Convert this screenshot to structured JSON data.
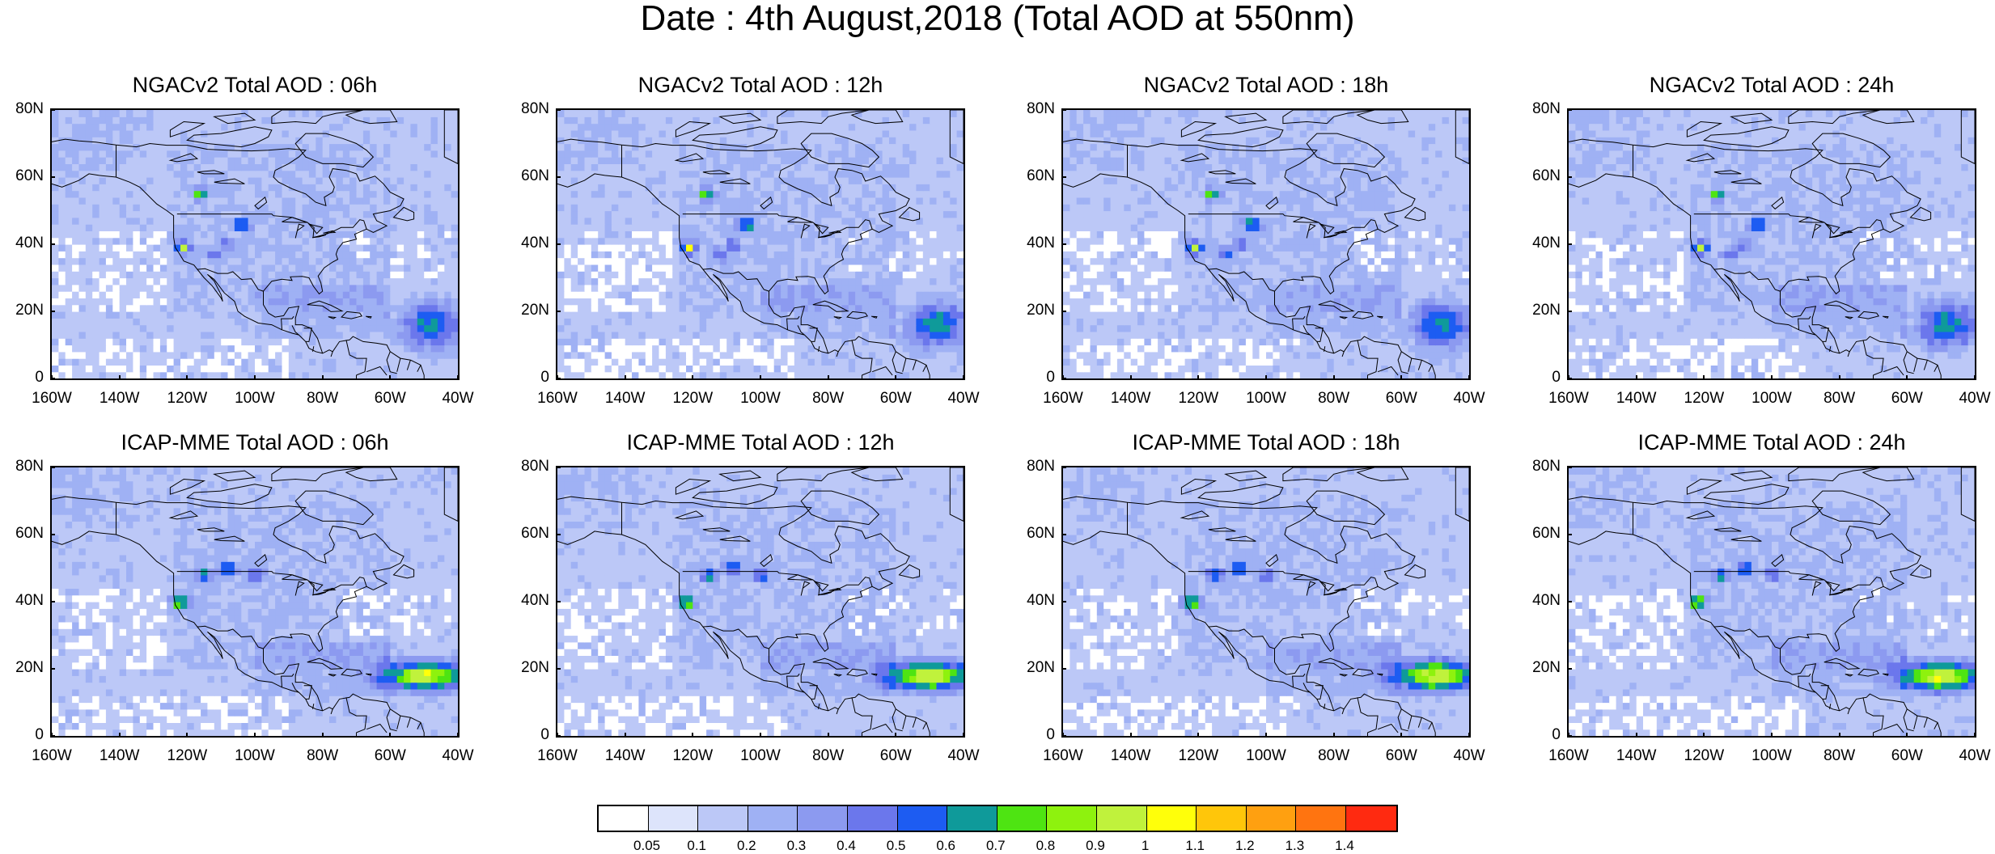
{
  "title": "Date : 4th August,2018 (Total AOD at 550nm)",
  "panels": [
    {
      "title": "NGACv2 Total AOD : 06h",
      "model": "NGACv2",
      "hour": "06h"
    },
    {
      "title": "NGACv2 Total AOD : 12h",
      "model": "NGACv2",
      "hour": "12h"
    },
    {
      "title": "NGACv2 Total AOD : 18h",
      "model": "NGACv2",
      "hour": "18h"
    },
    {
      "title": "NGACv2 Total AOD : 24h",
      "model": "NGACv2",
      "hour": "24h"
    },
    {
      "title": "ICAP-MME Total AOD : 06h",
      "model": "ICAP-MME",
      "hour": "06h"
    },
    {
      "title": "ICAP-MME Total AOD : 12h",
      "model": "ICAP-MME",
      "hour": "12h"
    },
    {
      "title": "ICAP-MME Total AOD : 18h",
      "model": "ICAP-MME",
      "hour": "18h"
    },
    {
      "title": "ICAP-MME Total AOD : 24h",
      "model": "ICAP-MME",
      "hour": "24h"
    }
  ],
  "axes": {
    "lat_ticks": [
      "80N",
      "60N",
      "40N",
      "20N",
      "0"
    ],
    "lon_ticks": [
      "160W",
      "140W",
      "120W",
      "100W",
      "80W",
      "60W",
      "40W"
    ]
  },
  "colorbar": {
    "labels": [
      "0.05",
      "0.1",
      "0.2",
      "0.3",
      "0.4",
      "0.5",
      "0.6",
      "0.7",
      "0.8",
      "0.9",
      "1",
      "1.1",
      "1.2",
      "1.3",
      "1.4"
    ],
    "colors": [
      "#ffffff",
      "#dde4fb",
      "#bcc8f7",
      "#9fb1f4",
      "#8c9af0",
      "#6b77ec",
      "#1d5cf2",
      "#0f9a9a",
      "#4ee412",
      "#8ef20e",
      "#c0f23c",
      "#ffff0a",
      "#ffc60a",
      "#ffa010",
      "#ff7410",
      "#ff2a10"
    ]
  }
}
